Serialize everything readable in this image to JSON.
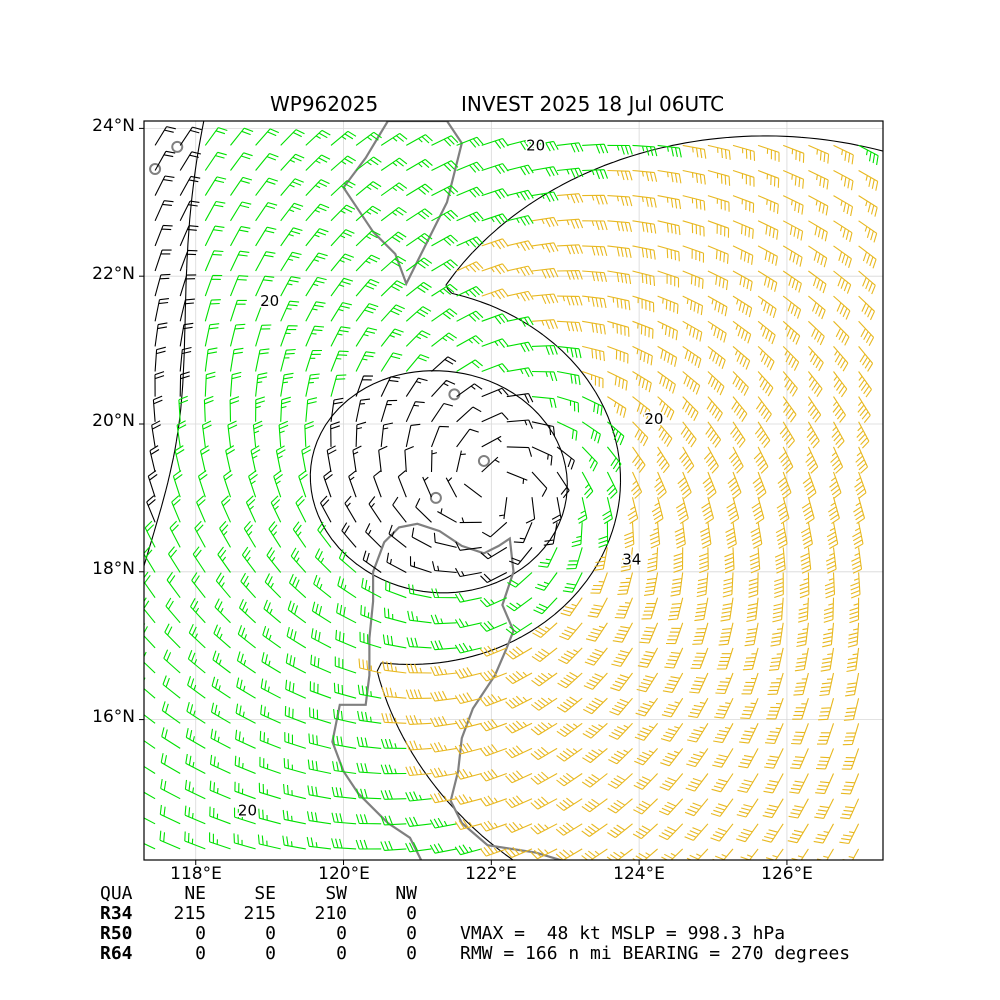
{
  "title": {
    "storm_id": "WP962025",
    "storm_info": "INVEST 2025 18 Jul 06UTC"
  },
  "map": {
    "lon_range": [
      117.3,
      127.3
    ],
    "lat_range": [
      14.1,
      24.1
    ],
    "lat_ticks": [
      "24°N",
      "22°N",
      "20°N",
      "18°N",
      "16°N"
    ],
    "lon_ticks": [
      "118°E",
      "120°E",
      "122°E",
      "124°E",
      "126°E"
    ],
    "center": {
      "lon": 122.0,
      "lat": 19.1
    },
    "rmw_nmi": 166,
    "max_wind_kt": 48,
    "coast_color": "#808080",
    "contour_color": "#000000",
    "barb_colors": {
      "below_20": "#000000",
      "20_to_34": "#00e000",
      "above_34": "#e8b820"
    },
    "contour_labels": [
      {
        "text": "20",
        "lon": 119.0,
        "lat": 21.6
      },
      {
        "text": "20",
        "lon": 122.6,
        "lat": 23.7
      },
      {
        "text": "20",
        "lon": 124.2,
        "lat": 20.0
      },
      {
        "text": "34",
        "lon": 123.9,
        "lat": 18.1
      },
      {
        "text": "20",
        "lon": 118.7,
        "lat": 14.7
      }
    ]
  },
  "quadrant_table": {
    "header": [
      "QUA",
      "NE",
      "SE",
      "SW",
      "NW"
    ],
    "rows": [
      {
        "label": "R34",
        "values": [
          "215",
          "215",
          "210",
          "0"
        ]
      },
      {
        "label": "R50",
        "values": [
          "0",
          "0",
          "0",
          "0"
        ]
      },
      {
        "label": "R64",
        "values": [
          "0",
          "0",
          "0",
          "0"
        ]
      }
    ]
  },
  "stats": {
    "line1": "VMAX =  48 kt MSLP = 998.3 hPa",
    "line2": "RMW = 166 n mi BEARING = 270 degrees"
  }
}
